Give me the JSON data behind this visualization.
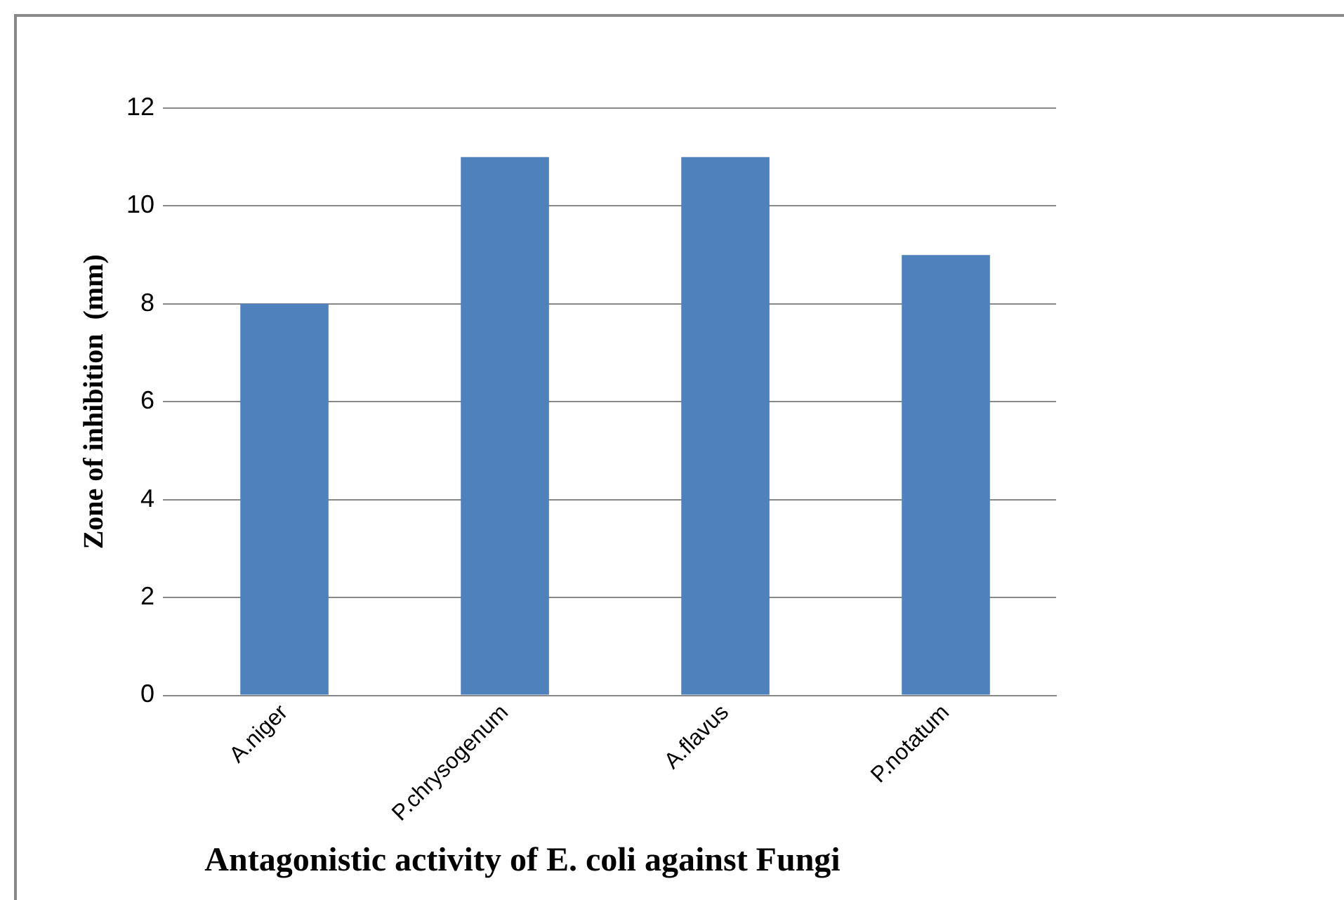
{
  "chart_data": {
    "type": "bar",
    "title": "Antagonistic activity of E. coli against Fungi",
    "ylabel": "Zone of inhibition  (mm)",
    "categories": [
      "A.niger",
      "P.chrysogenum",
      "A.flavus",
      "P.notatum"
    ],
    "values": [
      8,
      11,
      11,
      9
    ],
    "color": "#4f81bd",
    "ylim": [
      0,
      12
    ],
    "yticks": [
      0,
      2,
      4,
      6,
      8,
      10,
      12
    ],
    "grid": "y",
    "legend": false
  }
}
